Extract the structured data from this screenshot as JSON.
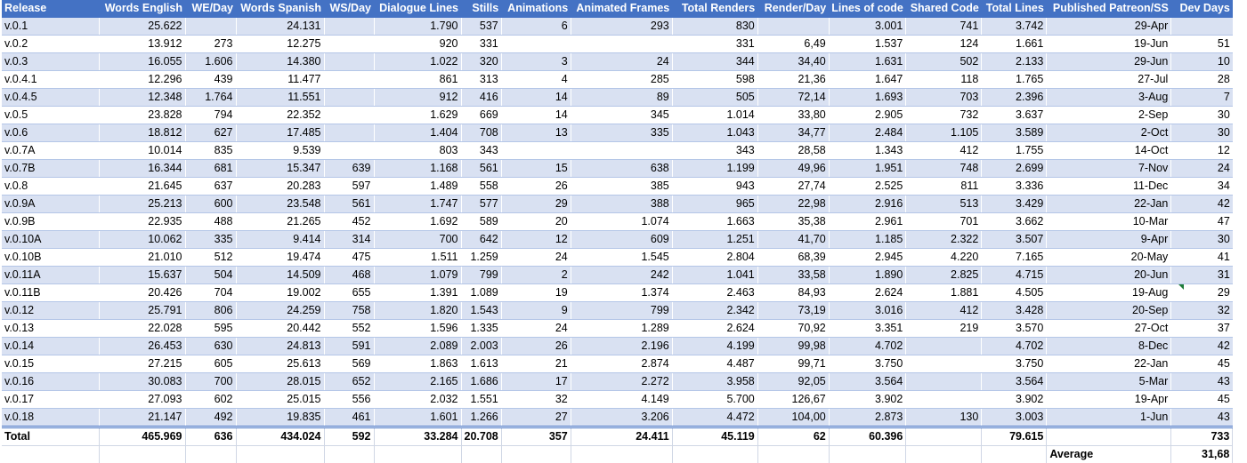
{
  "headers": [
    "Release",
    "Words English",
    "WE/Day",
    "Words Spanish",
    "WS/Day",
    "Dialogue Lines",
    "Stills",
    "Animations",
    "Animated Frames",
    "Total Renders",
    "Render/Day",
    "Lines of code",
    "Shared Code",
    "Total Lines",
    "Published Patreon/SS",
    "Dev Days"
  ],
  "rows": [
    [
      "v.0.1",
      "25.622",
      "",
      "24.131",
      "",
      "1.790",
      "537",
      "6",
      "293",
      "830",
      "",
      "3.001",
      "741",
      "3.742",
      "29-Apr",
      ""
    ],
    [
      "v.0.2",
      "13.912",
      "273",
      "12.275",
      "",
      "920",
      "331",
      "",
      "",
      "331",
      "6,49",
      "1.537",
      "124",
      "1.661",
      "19-Jun",
      "51"
    ],
    [
      "v.0.3",
      "16.055",
      "1.606",
      "14.380",
      "",
      "1.022",
      "320",
      "3",
      "24",
      "344",
      "34,40",
      "1.631",
      "502",
      "2.133",
      "29-Jun",
      "10"
    ],
    [
      "v.0.4.1",
      "12.296",
      "439",
      "11.477",
      "",
      "861",
      "313",
      "4",
      "285",
      "598",
      "21,36",
      "1.647",
      "118",
      "1.765",
      "27-Jul",
      "28"
    ],
    [
      "v.0.4.5",
      "12.348",
      "1.764",
      "11.551",
      "",
      "912",
      "416",
      "14",
      "89",
      "505",
      "72,14",
      "1.693",
      "703",
      "2.396",
      "3-Aug",
      "7"
    ],
    [
      "v.0.5",
      "23.828",
      "794",
      "22.352",
      "",
      "1.629",
      "669",
      "14",
      "345",
      "1.014",
      "33,80",
      "2.905",
      "732",
      "3.637",
      "2-Sep",
      "30"
    ],
    [
      "v.0.6",
      "18.812",
      "627",
      "17.485",
      "",
      "1.404",
      "708",
      "13",
      "335",
      "1.043",
      "34,77",
      "2.484",
      "1.105",
      "3.589",
      "2-Oct",
      "30"
    ],
    [
      "v.0.7A",
      "10.014",
      "835",
      "9.539",
      "",
      "803",
      "343",
      "",
      "",
      "343",
      "28,58",
      "1.343",
      "412",
      "1.755",
      "14-Oct",
      "12"
    ],
    [
      "v.0.7B",
      "16.344",
      "681",
      "15.347",
      "639",
      "1.168",
      "561",
      "15",
      "638",
      "1.199",
      "49,96",
      "1.951",
      "748",
      "2.699",
      "7-Nov",
      "24"
    ],
    [
      "v.0.8",
      "21.645",
      "637",
      "20.283",
      "597",
      "1.489",
      "558",
      "26",
      "385",
      "943",
      "27,74",
      "2.525",
      "811",
      "3.336",
      "11-Dec",
      "34"
    ],
    [
      "v.0.9A",
      "25.213",
      "600",
      "23.548",
      "561",
      "1.747",
      "577",
      "29",
      "388",
      "965",
      "22,98",
      "2.916",
      "513",
      "3.429",
      "22-Jan",
      "42"
    ],
    [
      "v.0.9B",
      "22.935",
      "488",
      "21.265",
      "452",
      "1.692",
      "589",
      "20",
      "1.074",
      "1.663",
      "35,38",
      "2.961",
      "701",
      "3.662",
      "10-Mar",
      "47"
    ],
    [
      "v.0.10A",
      "10.062",
      "335",
      "9.414",
      "314",
      "700",
      "642",
      "12",
      "609",
      "1.251",
      "41,70",
      "1.185",
      "2.322",
      "3.507",
      "9-Apr",
      "30"
    ],
    [
      "v.0.10B",
      "21.010",
      "512",
      "19.474",
      "475",
      "1.511",
      "1.259",
      "24",
      "1.545",
      "2.804",
      "68,39",
      "2.945",
      "4.220",
      "7.165",
      "20-May",
      "41"
    ],
    [
      "v.0.11A",
      "15.637",
      "504",
      "14.509",
      "468",
      "1.079",
      "799",
      "2",
      "242",
      "1.041",
      "33,58",
      "1.890",
      "2.825",
      "4.715",
      "20-Jun",
      "31"
    ],
    [
      "v.0.11B",
      "20.426",
      "704",
      "19.002",
      "655",
      "1.391",
      "1.089",
      "19",
      "1.374",
      "2.463",
      "84,93",
      "2.624",
      "1.881",
      "4.505",
      "19-Aug",
      "29"
    ],
    [
      "v.0.12",
      "25.791",
      "806",
      "24.259",
      "758",
      "1.820",
      "1.543",
      "9",
      "799",
      "2.342",
      "73,19",
      "3.016",
      "412",
      "3.428",
      "20-Sep",
      "32"
    ],
    [
      "v.0.13",
      "22.028",
      "595",
      "20.442",
      "552",
      "1.596",
      "1.335",
      "24",
      "1.289",
      "2.624",
      "70,92",
      "3.351",
      "219",
      "3.570",
      "27-Oct",
      "37"
    ],
    [
      "v.0.14",
      "26.453",
      "630",
      "24.813",
      "591",
      "2.089",
      "2.003",
      "26",
      "2.196",
      "4.199",
      "99,98",
      "4.702",
      "",
      "4.702",
      "8-Dec",
      "42"
    ],
    [
      "v.0.15",
      "27.215",
      "605",
      "25.613",
      "569",
      "1.863",
      "1.613",
      "21",
      "2.874",
      "4.487",
      "99,71",
      "3.750",
      "",
      "3.750",
      "22-Jan",
      "45"
    ],
    [
      "v.0.16",
      "30.083",
      "700",
      "28.015",
      "652",
      "2.165",
      "1.686",
      "17",
      "2.272",
      "3.958",
      "92,05",
      "3.564",
      "",
      "3.564",
      "5-Mar",
      "43"
    ],
    [
      "v.0.17",
      "27.093",
      "602",
      "25.015",
      "556",
      "2.032",
      "1.551",
      "32",
      "4.149",
      "5.700",
      "126,67",
      "3.902",
      "",
      "3.902",
      "19-Apr",
      "45"
    ],
    [
      "v.0.18",
      "21.147",
      "492",
      "19.835",
      "461",
      "1.601",
      "1.266",
      "27",
      "3.206",
      "4.472",
      "104,00",
      "2.873",
      "130",
      "3.003",
      "1-Jun",
      "43"
    ]
  ],
  "total": [
    "Total",
    "465.969",
    "636",
    "434.024",
    "592",
    "33.284",
    "20.708",
    "357",
    "24.411",
    "45.119",
    "62",
    "60.396",
    "",
    "79.615",
    "",
    "733"
  ],
  "average": {
    "label": "Average",
    "value": "31,68"
  }
}
